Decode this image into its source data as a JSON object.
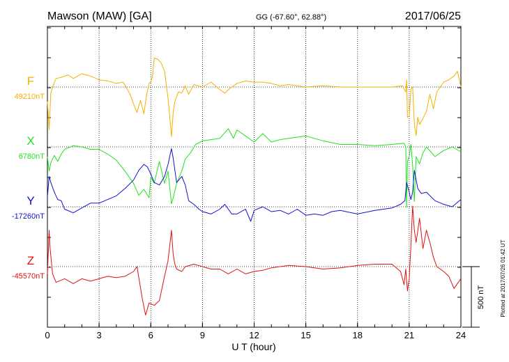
{
  "header": {
    "station": "Mawson (MAW)  [GA]",
    "coords": "GG (-67.60°,  62.88°)",
    "date": "2017/06/25"
  },
  "footer": {
    "xlabel": "U T (hour)",
    "plotted": "Plotted at 2017/07/26 01:42 UT"
  },
  "scale_bar": {
    "label": "500 nT",
    "value_nt": 500
  },
  "chart_data": {
    "type": "line",
    "xlabel": "U T (hour)",
    "xlim": [
      0,
      24
    ],
    "xticks": [
      "0",
      "3",
      "6",
      "9",
      "12",
      "15",
      "18",
      "21",
      "24"
    ],
    "grid": "dotted",
    "nt_per_panel_unit": 500,
    "series": [
      {
        "name": "F",
        "baseline_label": "49210nT",
        "baseline_nt": 49210,
        "color": "#f5b000",
        "x": [
          0,
          0.1,
          0.2,
          0.35,
          0.5,
          0.8,
          1.2,
          1.5,
          2.0,
          2.5,
          3.0,
          3.5,
          4.0,
          4.4,
          4.8,
          5.0,
          5.2,
          5.4,
          5.6,
          5.75,
          5.9,
          6.0,
          6.1,
          6.2,
          6.4,
          6.6,
          6.8,
          7.0,
          7.1,
          7.2,
          7.3,
          7.4,
          7.6,
          7.8,
          8.0,
          8.2,
          8.5,
          9.0,
          9.5,
          10.0,
          10.3,
          10.6,
          11.0,
          11.5,
          12.0,
          12.5,
          13.0,
          13.5,
          14.0,
          15.0,
          16.0,
          17.0,
          18.0,
          19.0,
          20.0,
          20.6,
          20.8,
          20.85,
          20.9,
          21.0,
          21.1,
          21.2,
          21.3,
          21.4,
          21.5,
          21.6,
          21.8,
          22.0,
          22.2,
          22.4,
          22.6,
          22.8,
          23.0,
          23.3,
          23.6,
          23.8,
          24.0
        ],
        "y": [
          -120,
          -350,
          -50,
          20,
          70,
          80,
          100,
          70,
          110,
          90,
          60,
          50,
          30,
          40,
          -60,
          -140,
          -210,
          -110,
          -220,
          -70,
          30,
          40,
          90,
          240,
          230,
          200,
          130,
          -90,
          -240,
          -410,
          -210,
          -120,
          -40,
          -50,
          10,
          -60,
          20,
          0,
          40,
          -20,
          -50,
          -10,
          30,
          50,
          40,
          40,
          30,
          10,
          20,
          0,
          10,
          0,
          0,
          0,
          0,
          10,
          -40,
          60,
          -250,
          -240,
          -20,
          0,
          -310,
          -400,
          -250,
          -310,
          -260,
          -200,
          -60,
          -180,
          -40,
          0,
          40,
          60,
          90,
          130,
          0
        ]
      },
      {
        "name": "X",
        "baseline_label": "6780nT",
        "baseline_nt": 6780,
        "color": "#1ee31e",
        "x": [
          0,
          0.1,
          0.2,
          0.4,
          0.6,
          0.8,
          1.0,
          1.5,
          2.0,
          2.5,
          3.0,
          3.5,
          4.0,
          4.5,
          5.0,
          5.3,
          5.6,
          5.9,
          6.0,
          6.2,
          6.5,
          6.8,
          7.0,
          7.2,
          7.3,
          7.5,
          7.8,
          8.0,
          8.3,
          8.6,
          9.0,
          9.5,
          10.0,
          10.5,
          10.8,
          11.0,
          11.5,
          12.0,
          12.5,
          13.0,
          13.5,
          14.0,
          15.0,
          16.0,
          17.0,
          18.0,
          19.0,
          20.0,
          20.7,
          20.8,
          20.85,
          20.9,
          21.0,
          21.1,
          21.2,
          21.3,
          21.4,
          21.6,
          21.8,
          22.0,
          22.5,
          23.0,
          23.5,
          24.0
        ],
        "y": [
          -80,
          -200,
          -130,
          -70,
          -120,
          -60,
          -20,
          10,
          0,
          -20,
          -20,
          -60,
          -110,
          -200,
          -300,
          -400,
          -350,
          -420,
          -250,
          -300,
          -120,
          -300,
          -200,
          -470,
          -420,
          -300,
          -200,
          -100,
          -50,
          20,
          50,
          60,
          70,
          150,
          70,
          140,
          90,
          40,
          110,
          40,
          60,
          70,
          90,
          50,
          20,
          20,
          10,
          20,
          30,
          0,
          -500,
          -120,
          -80,
          20,
          -150,
          -450,
          -80,
          -140,
          -50,
          0,
          -80,
          -30,
          0,
          -40
        ]
      },
      {
        "name": "Y",
        "baseline_label": "-17260nT",
        "baseline_nt": -17260,
        "color": "#1010d0",
        "x": [
          0,
          0.1,
          0.2,
          0.4,
          0.6,
          0.8,
          1.0,
          1.5,
          2.0,
          2.5,
          3.0,
          3.5,
          4.0,
          4.5,
          5.0,
          5.3,
          5.6,
          5.8,
          6.0,
          6.2,
          6.5,
          6.8,
          7.0,
          7.2,
          7.3,
          7.5,
          7.8,
          8.0,
          8.2,
          8.5,
          8.8,
          9.0,
          9.5,
          10.0,
          10.3,
          10.7,
          11.0,
          11.5,
          11.8,
          12.0,
          12.5,
          13.0,
          13.5,
          14.0,
          14.5,
          15.0,
          15.5,
          16.0,
          16.5,
          17.0,
          18.0,
          19.0,
          20.0,
          20.5,
          20.75,
          20.85,
          20.95,
          21.1,
          21.2,
          21.3,
          21.5,
          21.7,
          22.0,
          22.5,
          23.0,
          23.5,
          24.0
        ],
        "y": [
          80,
          250,
          200,
          120,
          60,
          50,
          -20,
          -50,
          -10,
          30,
          30,
          60,
          90,
          150,
          220,
          300,
          350,
          330,
          270,
          200,
          180,
          250,
          350,
          480,
          400,
          200,
          250,
          180,
          50,
          20,
          -20,
          -40,
          -60,
          -20,
          20,
          -60,
          -60,
          -20,
          -120,
          -30,
          0,
          -40,
          -30,
          -60,
          -20,
          -70,
          -60,
          -70,
          -40,
          -30,
          -60,
          -30,
          -10,
          20,
          50,
          200,
          150,
          60,
          120,
          300,
          150,
          110,
          120,
          50,
          20,
          0,
          60
        ]
      },
      {
        "name": "Z",
        "baseline_label": "-45570nT",
        "baseline_nt": -45570,
        "color": "#e01010",
        "x": [
          0,
          0.1,
          0.15,
          0.3,
          0.5,
          1.0,
          1.5,
          2.0,
          2.5,
          3.0,
          3.5,
          4.0,
          4.5,
          5.0,
          5.2,
          5.5,
          5.7,
          5.9,
          6.2,
          6.5,
          6.8,
          7.0,
          7.2,
          7.3,
          7.4,
          7.5,
          7.8,
          8.0,
          8.5,
          9.0,
          9.5,
          10.0,
          10.5,
          11.0,
          11.5,
          12.0,
          12.5,
          13.0,
          14.0,
          15.0,
          16.0,
          17.0,
          18.0,
          19.0,
          20.0,
          20.5,
          20.7,
          20.8,
          20.9,
          21.0,
          21.1,
          21.2,
          21.3,
          21.4,
          21.6,
          21.8,
          22.0,
          22.2,
          22.4,
          22.6,
          22.8,
          23.0,
          23.3,
          23.6,
          24.0
        ],
        "y": [
          -60,
          300,
          160,
          -60,
          -130,
          -100,
          -140,
          -100,
          -120,
          -100,
          -80,
          -90,
          -80,
          -40,
          0,
          -260,
          -400,
          -300,
          -320,
          -280,
          -80,
          50,
          300,
          100,
          20,
          -20,
          -40,
          0,
          20,
          0,
          -20,
          -20,
          -60,
          -20,
          -60,
          -40,
          -30,
          -10,
          10,
          0,
          -20,
          -10,
          10,
          20,
          20,
          -40,
          -150,
          -20,
          -200,
          -100,
          170,
          500,
          300,
          200,
          400,
          150,
          300,
          200,
          80,
          0,
          -20,
          -40,
          -80,
          -180,
          -100
        ]
      }
    ]
  }
}
